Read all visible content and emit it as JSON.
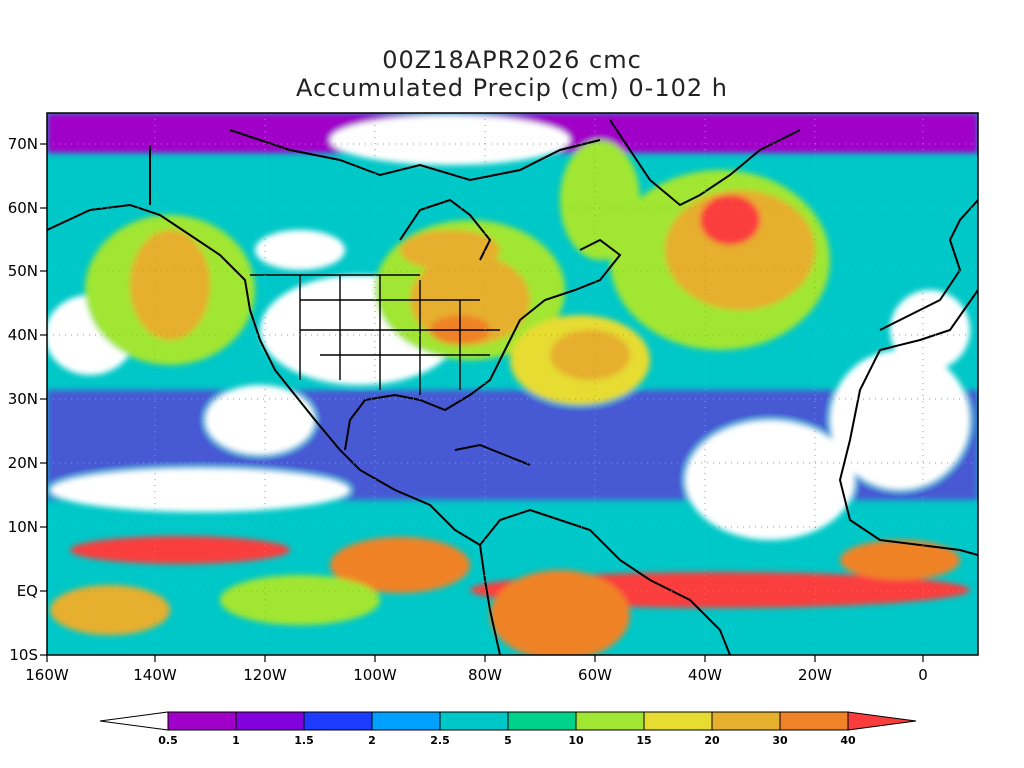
{
  "header": {
    "line1": "00Z18APR2026 cmc",
    "line2": "Accumulated Precip (cm) 0-102 h"
  },
  "axes": {
    "lon_ticks": [
      "160W",
      "140W",
      "120W",
      "100W",
      "80W",
      "60W",
      "40W",
      "20W",
      "0"
    ],
    "lat_ticks": [
      "70N",
      "60N",
      "50N",
      "40N",
      "30N",
      "20N",
      "10N",
      "EQ",
      "10S"
    ]
  },
  "colorbar": {
    "labels": [
      "0.5",
      "1",
      "1.5",
      "2",
      "2.5",
      "5",
      "10",
      "15",
      "20",
      "30",
      "40"
    ],
    "colors": [
      "#ffffff",
      "#a000c8",
      "#8200dc",
      "#1e3cff",
      "#00a0ff",
      "#00c8c8",
      "#00d28c",
      "#a0e632",
      "#e6dc32",
      "#e6af2d",
      "#f08228",
      "#fa3c3c"
    ]
  }
}
